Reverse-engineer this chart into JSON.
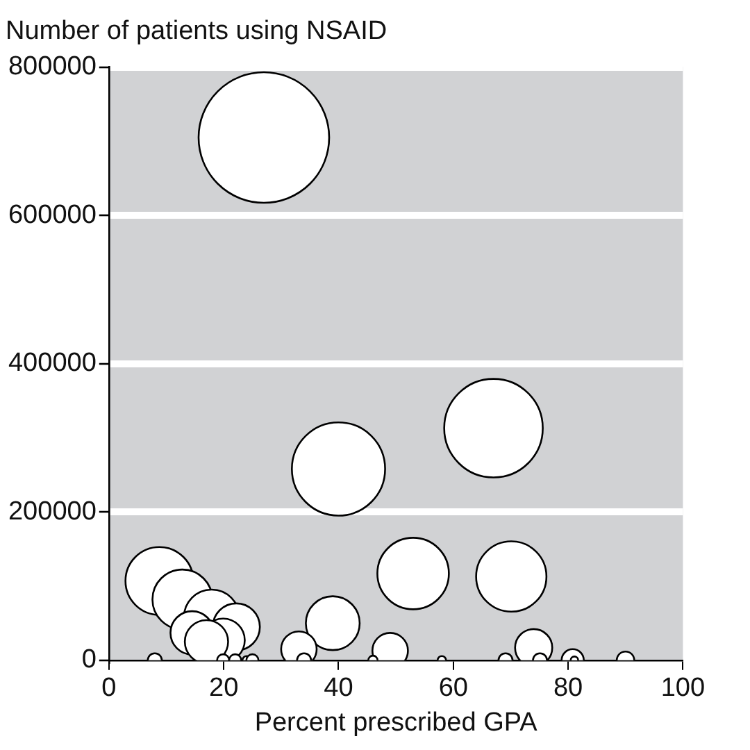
{
  "chart_data": {
    "type": "bubble",
    "ylabel": "Number of patients using NSAID",
    "xlabel": "Percent prescribed GPA",
    "xlim": [
      0,
      100
    ],
    "xticks": [
      0,
      20,
      40,
      60,
      80,
      100
    ],
    "ylim": [
      0,
      800000
    ],
    "yticks": [
      0,
      200000,
      400000,
      600000,
      800000
    ],
    "grid": "y",
    "legend": false,
    "marker": "circle",
    "relative": false,
    "series": [
      {
        "color": "#ffffff",
        "x": [
          27.0,
          67.0,
          40.0,
          53.0,
          70.1,
          8.8,
          12.8,
          17.9,
          22.2,
          14.5,
          19.9,
          17.0,
          39.0,
          33.1,
          49.0,
          74.0,
          8.0,
          19.9,
          22.0,
          24.0,
          25.0,
          34.0,
          46.0,
          58.0,
          69.1,
          75.1,
          80.8,
          81.1,
          90.0
        ],
        "values": [
          705000,
          313000,
          258000,
          117000,
          113000,
          107000,
          82000,
          58000,
          45000,
          37000,
          27000,
          25000,
          50000,
          15000,
          13000,
          17000,
          0,
          0,
          0,
          0,
          0,
          0,
          0,
          0,
          0,
          0,
          0,
          0,
          0
        ],
        "sizes": [
          1,
          0.57,
          0.51,
          0.3,
          0.29,
          0.27,
          0.21,
          0.18,
          0.13,
          0.11,
          0.11,
          0.11,
          0.17,
          0.074,
          0.074,
          0.081,
          0.0115,
          0.0085,
          0.0085,
          0.0041,
          0.0085,
          0.0115,
          0.005,
          0.0041,
          0.0115,
          0.0115,
          0.029,
          0.0033,
          0.018
        ]
      }
    ]
  }
}
